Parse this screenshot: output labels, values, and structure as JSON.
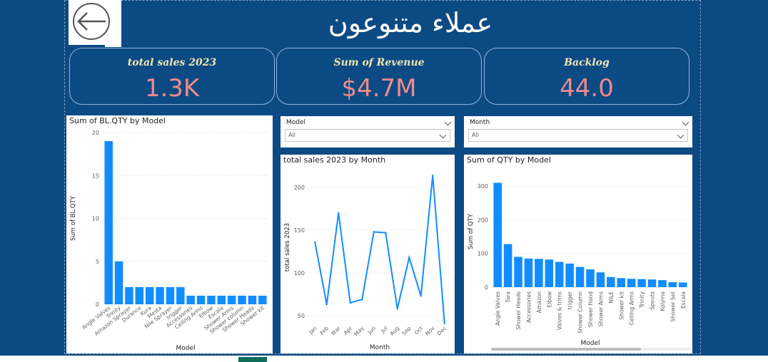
{
  "page": {
    "title": "عملاء متنوعون"
  },
  "kpis": [
    {
      "label": "total sales 2023",
      "value": "1.3K"
    },
    {
      "label": "Sum of Revenue",
      "value": "$4.7M"
    },
    {
      "label": "Backlog",
      "value": "44.0"
    }
  ],
  "slicers": [
    {
      "label": "Model",
      "value": "All"
    },
    {
      "label": "Month",
      "value": "All"
    }
  ],
  "colors": {
    "bar": "#118dff",
    "line": "#118dff",
    "background": "#0c4a84",
    "kpi_value": "#f08a8a",
    "kpi_label": "#f1e6b0"
  },
  "icons": {
    "back": "back-arrow-icon"
  },
  "chart_data": [
    {
      "id": "bl_qty",
      "type": "bar",
      "title": "Sum of BL.QTY by Model",
      "xlabel": "Model",
      "ylabel": "Sum of BL.QTY",
      "ylim": [
        0,
        20
      ],
      "yticks": [
        0,
        5,
        10,
        15,
        20
      ],
      "grid": true,
      "categories": [
        "Angle Valves",
        "Trinity",
        "Amazon Sprayer",
        "Durance",
        "Kura",
        "Mesta",
        "Nile Sprayer",
        "trigger",
        "Accessories",
        "Ceiling Arms",
        "Elbow",
        "Escala",
        "Shower Arms",
        "Shower column",
        "Shower Heads",
        "Shower kit"
      ],
      "values": [
        19,
        5,
        2,
        2,
        2,
        2,
        2,
        2,
        1,
        1,
        1,
        1,
        1,
        1,
        1,
        1
      ]
    },
    {
      "id": "sales_month",
      "type": "line",
      "title": "total sales 2023 by Month",
      "xlabel": "Month",
      "ylabel": "total sales 2023",
      "ylim": [
        40,
        220
      ],
      "yticks": [
        50,
        100,
        150,
        200
      ],
      "grid": true,
      "categories": [
        "Jan",
        "Feb",
        "Mar",
        "Apr",
        "May",
        "Jun",
        "Jul",
        "Aug",
        "Sep",
        "Oct",
        "Nov",
        "Dec"
      ],
      "values": [
        136,
        63,
        170,
        65,
        69,
        148,
        147,
        58,
        118,
        73,
        214,
        41
      ]
    },
    {
      "id": "qty_model",
      "type": "bar",
      "title": "Sum of QTY by Model",
      "xlabel": "Model",
      "ylabel": "Sum of QTY",
      "ylim": [
        0,
        330
      ],
      "yticks": [
        0,
        100,
        200,
        300
      ],
      "grid": true,
      "categories": [
        "Angle Valves",
        "Tara",
        "Shower Heads",
        "Accessories",
        "Amazon",
        "Elbow",
        "Valves & trims",
        "trigger",
        "Shower Column",
        "Shower Hand",
        "Shower Arms",
        "NILE",
        "Shower kit",
        "Ceiling Arms",
        "Trinity",
        "Spouts",
        "Kolyma",
        "Shower Set",
        "Escala"
      ],
      "values": [
        310,
        128,
        90,
        85,
        84,
        82,
        75,
        70,
        60,
        53,
        44,
        30,
        27,
        25,
        24,
        23,
        21,
        15,
        14
      ]
    }
  ]
}
